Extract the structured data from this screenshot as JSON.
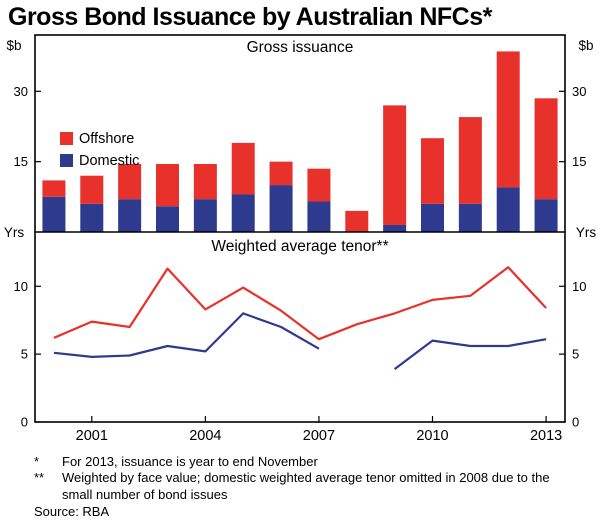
{
  "page": {
    "title": "Gross Bond Issuance by Australian NFCs*",
    "footnotes": [
      {
        "marker": "*",
        "text": "For 2013, issuance is year to end November"
      },
      {
        "marker": "**",
        "text": "Weighted by face value; domestic weighted average tenor omitted in 2008 due to the small number of bond issues"
      }
    ],
    "source": "Source: RBA"
  },
  "colors": {
    "offshore": "#e8312a",
    "domestic": "#2d3a8d",
    "axis": "#000000"
  },
  "chart_data": [
    {
      "type": "bar",
      "stacked": true,
      "panel": "top",
      "title": "Gross issuance",
      "unit_label": "$b",
      "categories": [
        2000,
        2001,
        2002,
        2003,
        2004,
        2005,
        2006,
        2007,
        2008,
        2009,
        2010,
        2011,
        2012,
        2013
      ],
      "series": [
        {
          "name": "Domestic",
          "color": "#2d3a8d",
          "values": [
            7.5,
            6,
            7,
            5.5,
            7,
            8,
            10,
            6.5,
            0,
            1.5,
            6,
            6,
            9.5,
            7
          ]
        },
        {
          "name": "Offshore",
          "color": "#e8312a",
          "values": [
            3.5,
            6,
            7.5,
            9,
            7.5,
            11,
            5,
            7,
            4.5,
            25.5,
            14,
            18.5,
            29,
            21.5
          ]
        }
      ],
      "ylim": [
        0,
        42
      ],
      "yticks": [
        15,
        30
      ],
      "xtick_years": [
        2001,
        2004,
        2007,
        2010,
        2013
      ],
      "grid": false,
      "legend_position": "left-middle",
      "legend_order": [
        "Offshore",
        "Domestic"
      ]
    },
    {
      "type": "line",
      "panel": "bottom",
      "title": "Weighted average tenor**",
      "unit_label": "Yrs",
      "categories": [
        2000,
        2001,
        2002,
        2003,
        2004,
        2005,
        2006,
        2007,
        2008,
        2009,
        2010,
        2011,
        2012,
        2013
      ],
      "series": [
        {
          "name": "Offshore",
          "color": "#e8312a",
          "values": [
            6.2,
            7.4,
            7.0,
            11.3,
            8.3,
            9.9,
            8.2,
            6.1,
            7.2,
            8.0,
            9.0,
            9.3,
            11.4,
            8.4
          ]
        },
        {
          "name": "Domestic",
          "color": "#2d3a8d",
          "values": [
            5.1,
            4.8,
            4.9,
            5.6,
            5.2,
            8.0,
            7.0,
            5.4,
            null,
            3.9,
            6.0,
            5.6,
            5.6,
            6.1
          ]
        }
      ],
      "ylim": [
        0,
        14
      ],
      "yticks": [
        0,
        5,
        10
      ],
      "grid": false,
      "note": "domestic series has a gap in 2008"
    }
  ]
}
